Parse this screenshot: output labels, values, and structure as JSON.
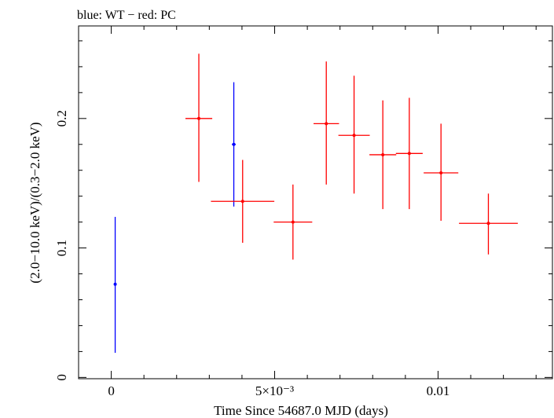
{
  "chart_data": {
    "type": "scatter",
    "title": "blue: WT − red: PC",
    "xlabel": "Time Since 54687.0 MJD (days)",
    "ylabel": "(2.0−10.0 keV)/(0.3−2.0 keV)",
    "xlim": [
      -0.001,
      0.0135
    ],
    "ylim": [
      -0.001,
      0.2715
    ],
    "grid": false,
    "x_ticks": [
      {
        "value": 0,
        "label": "0"
      },
      {
        "value": 0.005,
        "label": "5×10⁻³"
      },
      {
        "value": 0.01,
        "label": "0.01"
      }
    ],
    "y_ticks": [
      {
        "value": 0,
        "label": "0"
      },
      {
        "value": 0.1,
        "label": "0.1"
      },
      {
        "value": 0.2,
        "label": "0.2"
      }
    ],
    "series": [
      {
        "color": "#0000ff",
        "points": [
          {
            "x": 0.00012,
            "xerr": 0.0,
            "y": 0.072,
            "ylo": 0.019,
            "yhi": 0.124
          },
          {
            "x": 0.00375,
            "xerr": 6e-05,
            "y": 0.18,
            "ylo": 0.132,
            "yhi": 0.228
          }
        ]
      },
      {
        "color": "#ff0000",
        "points": [
          {
            "x": 0.00268,
            "xerr": 0.00041,
            "y": 0.2,
            "ylo": 0.151,
            "yhi": 0.25
          },
          {
            "x": 0.00402,
            "xerr": 0.00097,
            "y": 0.136,
            "ylo": 0.104,
            "yhi": 0.168
          },
          {
            "x": 0.00556,
            "xerr": 0.00059,
            "y": 0.12,
            "ylo": 0.091,
            "yhi": 0.149
          },
          {
            "x": 0.00658,
            "xerr": 0.00039,
            "y": 0.196,
            "ylo": 0.149,
            "yhi": 0.244
          },
          {
            "x": 0.00743,
            "xerr": 0.00048,
            "y": 0.187,
            "ylo": 0.142,
            "yhi": 0.233
          },
          {
            "x": 0.00831,
            "xerr": 0.00041,
            "y": 0.172,
            "ylo": 0.13,
            "yhi": 0.214
          },
          {
            "x": 0.00912,
            "xerr": 0.00041,
            "y": 0.173,
            "ylo": 0.13,
            "yhi": 0.216
          },
          {
            "x": 0.01009,
            "xerr": 0.00053,
            "y": 0.158,
            "ylo": 0.121,
            "yhi": 0.196
          },
          {
            "x": 0.01154,
            "xerr": 0.0009,
            "y": 0.119,
            "ylo": 0.095,
            "yhi": 0.142
          }
        ]
      }
    ]
  }
}
